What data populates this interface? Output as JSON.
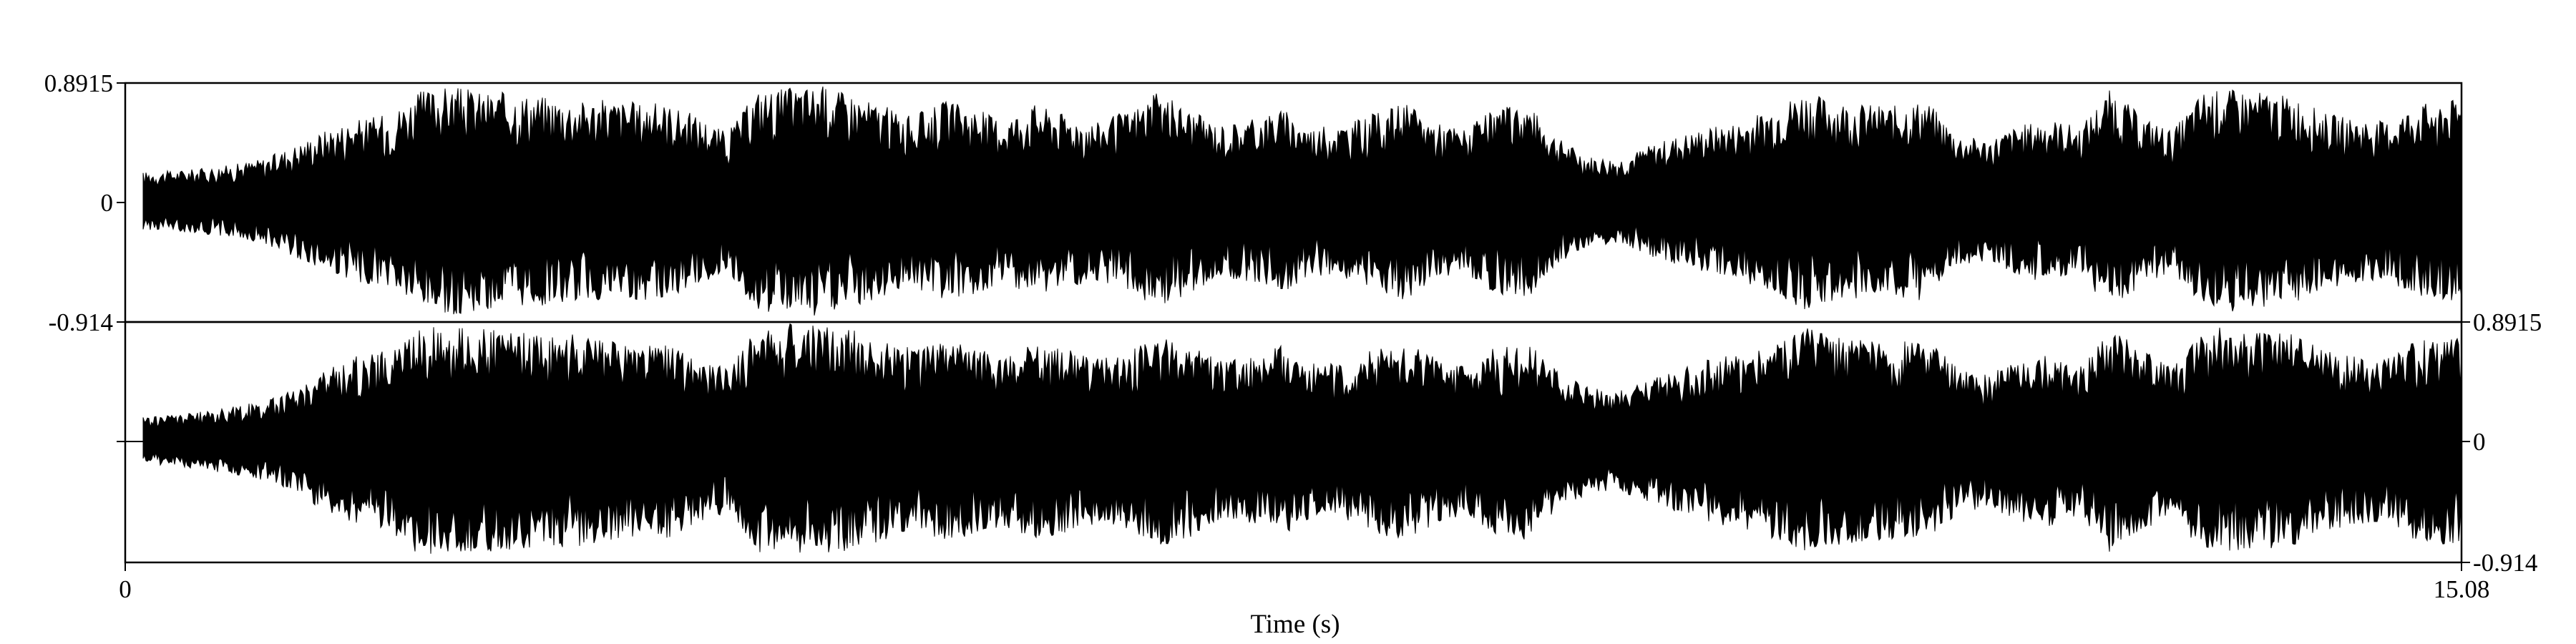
{
  "chart_data": {
    "type": "area",
    "title": "",
    "xlabel": "Time (s)",
    "x_ticks": [
      "0",
      "15.08"
    ],
    "xlim": [
      0,
      15.08
    ],
    "channels": [
      {
        "name": "",
        "ylim": [
          -0.914,
          0.8915
        ],
        "y_ticks": [
          "0.8915",
          "0",
          "-0.914"
        ],
        "tick_side": "left",
        "envelope": {
          "time_s": [
            0.0,
            0.2,
            0.4,
            0.6,
            0.8,
            1.0,
            1.2,
            1.4,
            1.6,
            1.8,
            2.0,
            2.2,
            2.4,
            2.6,
            2.8,
            3.0,
            3.2,
            3.4,
            3.6,
            3.8,
            4.0,
            4.2,
            4.4,
            4.6,
            4.8,
            5.0,
            5.2,
            5.4,
            5.6,
            5.8,
            6.0,
            6.2,
            6.4,
            6.6,
            6.8,
            7.0,
            7.2,
            7.4,
            7.6,
            7.8,
            8.0,
            8.2,
            8.4,
            8.6,
            8.8,
            9.0,
            9.2,
            9.4,
            9.6,
            9.8,
            10.0,
            10.2,
            10.4,
            10.6,
            10.8,
            11.0,
            11.2,
            11.4,
            11.6,
            11.8,
            12.0,
            12.2,
            12.4,
            12.6,
            12.8,
            13.0,
            13.2,
            13.4,
            13.6,
            13.8,
            14.0,
            14.2,
            14.4,
            14.6,
            14.8,
            15.0
          ],
          "amplitude": [
            0.22,
            0.23,
            0.25,
            0.28,
            0.33,
            0.43,
            0.55,
            0.62,
            0.66,
            0.83,
            0.87,
            0.83,
            0.82,
            0.8,
            0.76,
            0.77,
            0.75,
            0.74,
            0.65,
            0.52,
            0.84,
            0.86,
            0.88,
            0.82,
            0.73,
            0.64,
            0.76,
            0.71,
            0.62,
            0.74,
            0.66,
            0.6,
            0.68,
            0.82,
            0.7,
            0.58,
            0.62,
            0.7,
            0.56,
            0.58,
            0.66,
            0.75,
            0.6,
            0.55,
            0.7,
            0.74,
            0.48,
            0.34,
            0.32,
            0.42,
            0.5,
            0.56,
            0.6,
            0.71,
            0.83,
            0.76,
            0.73,
            0.72,
            0.76,
            0.5,
            0.46,
            0.57,
            0.62,
            0.56,
            0.85,
            0.64,
            0.53,
            0.83,
            0.84,
            0.82,
            0.78,
            0.66,
            0.62,
            0.6,
            0.73,
            0.76
          ]
        }
      },
      {
        "name": "",
        "ylim": [
          -0.914,
          0.8915
        ],
        "y_ticks": [
          "0.8915",
          "0",
          "-0.914"
        ],
        "tick_side": "right",
        "envelope": {
          "time_s": [
            0.0,
            0.2,
            0.4,
            0.6,
            0.8,
            1.0,
            1.2,
            1.4,
            1.6,
            1.8,
            2.0,
            2.2,
            2.4,
            2.6,
            2.8,
            3.0,
            3.2,
            3.4,
            3.6,
            3.8,
            4.0,
            4.2,
            4.4,
            4.6,
            4.8,
            5.0,
            5.2,
            5.4,
            5.6,
            5.8,
            6.0,
            6.2,
            6.4,
            6.6,
            6.8,
            7.0,
            7.2,
            7.4,
            7.6,
            7.8,
            8.0,
            8.2,
            8.4,
            8.6,
            8.8,
            9.0,
            9.2,
            9.4,
            9.6,
            9.8,
            10.0,
            10.2,
            10.4,
            10.6,
            10.8,
            11.0,
            11.2,
            11.4,
            11.6,
            11.8,
            12.0,
            12.2,
            12.4,
            12.6,
            12.8,
            13.0,
            13.2,
            13.4,
            13.6,
            13.8,
            14.0,
            14.2,
            14.4,
            14.6,
            14.8,
            15.0
          ],
          "amplitude": [
            0.18,
            0.2,
            0.22,
            0.26,
            0.3,
            0.4,
            0.54,
            0.64,
            0.68,
            0.86,
            0.86,
            0.84,
            0.82,
            0.8,
            0.8,
            0.77,
            0.73,
            0.74,
            0.62,
            0.55,
            0.86,
            0.88,
            0.86,
            0.84,
            0.76,
            0.7,
            0.74,
            0.73,
            0.64,
            0.76,
            0.7,
            0.62,
            0.66,
            0.8,
            0.73,
            0.62,
            0.62,
            0.72,
            0.58,
            0.58,
            0.7,
            0.74,
            0.64,
            0.56,
            0.72,
            0.75,
            0.52,
            0.4,
            0.38,
            0.46,
            0.55,
            0.62,
            0.66,
            0.74,
            0.88,
            0.8,
            0.75,
            0.74,
            0.76,
            0.56,
            0.5,
            0.6,
            0.66,
            0.58,
            0.86,
            0.68,
            0.56,
            0.86,
            0.84,
            0.82,
            0.8,
            0.68,
            0.64,
            0.62,
            0.76,
            0.78
          ]
        }
      }
    ],
    "colors": {
      "waveform": "#000000",
      "axes": "#000000",
      "background": "#ffffff"
    }
  }
}
